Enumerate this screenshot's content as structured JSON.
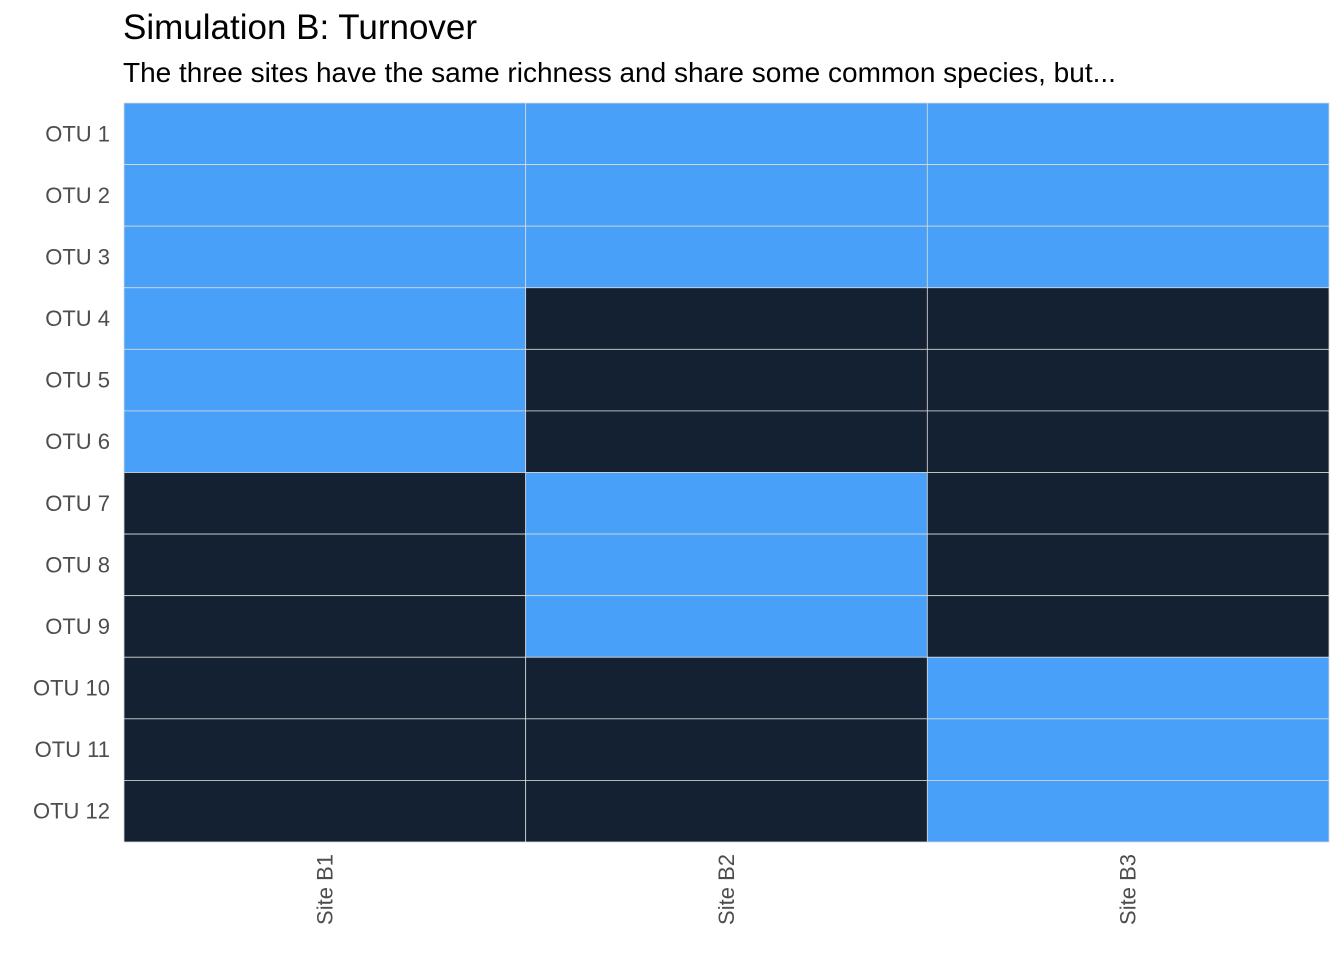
{
  "chart_data": {
    "type": "heatmap",
    "title": "Simulation B: Turnover",
    "subtitle": "The three sites have the same richness and share some common species, but...",
    "xlabel": "",
    "ylabel": "",
    "x_categories": [
      "Site B1",
      "Site B2",
      "Site B3"
    ],
    "y_categories": [
      "OTU 1",
      "OTU 2",
      "OTU 3",
      "OTU 4",
      "OTU 5",
      "OTU 6",
      "OTU 7",
      "OTU 8",
      "OTU 9",
      "OTU 10",
      "OTU 11",
      "OTU 12"
    ],
    "values": [
      [
        1,
        1,
        1
      ],
      [
        1,
        1,
        1
      ],
      [
        1,
        1,
        1
      ],
      [
        1,
        0,
        0
      ],
      [
        1,
        0,
        0
      ],
      [
        1,
        0,
        0
      ],
      [
        0,
        1,
        0
      ],
      [
        0,
        1,
        0
      ],
      [
        0,
        1,
        0
      ],
      [
        0,
        0,
        1
      ],
      [
        0,
        0,
        1
      ],
      [
        0,
        0,
        1
      ]
    ],
    "colors": {
      "present": "#48a0f8",
      "absent": "#132133",
      "cell_border": "#d9d9d9",
      "tick_label": "#4d4d4d"
    },
    "legend": "none",
    "grid": false
  }
}
